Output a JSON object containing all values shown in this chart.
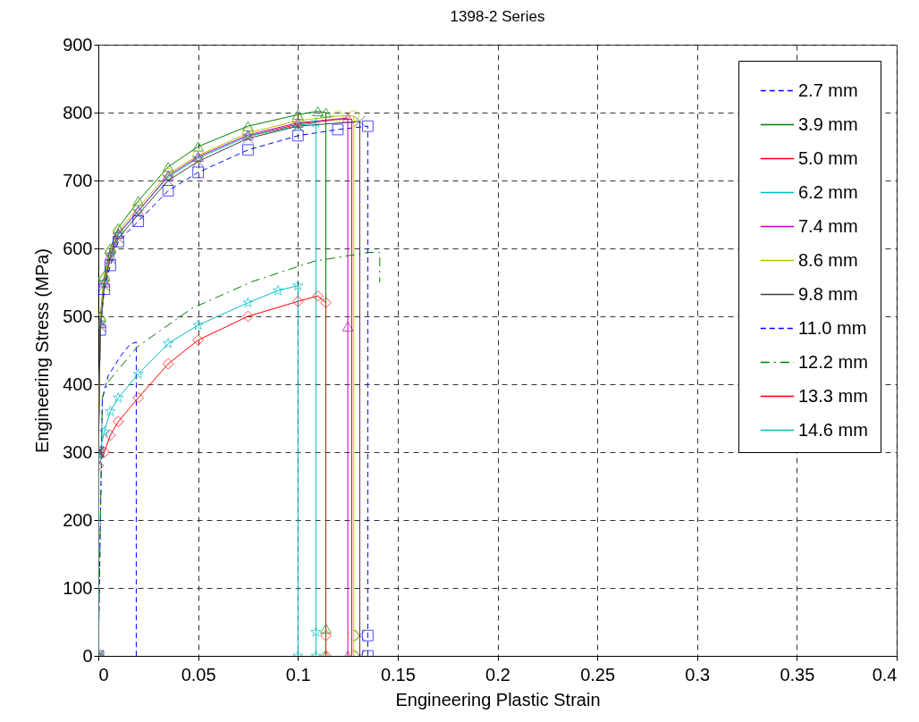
{
  "chart_data": {
    "type": "line",
    "title": "1398-2 Series",
    "xlabel": "Engineering Plastic Strain",
    "ylabel": "Engineering Stress (MPa)",
    "xlim": [
      0,
      0.4
    ],
    "xticks": [
      0,
      0.05,
      0.1,
      0.15,
      0.2,
      0.25,
      0.3,
      0.35,
      0.4
    ],
    "ylim": [
      0,
      900
    ],
    "yticks": [
      0,
      100,
      200,
      300,
      400,
      500,
      600,
      700,
      800,
      900
    ],
    "grid": true,
    "legend": "top right",
    "series": [
      {
        "name": "2.7 mm",
        "color": "#0000ff",
        "marker": "square",
        "line_style": "dashed",
        "x": [
          0,
          0,
          0.001,
          0.003,
          0.006,
          0.01,
          0.02,
          0.035,
          0.05,
          0.075,
          0.1,
          0.12,
          0.135,
          0.135,
          0.135
        ],
        "values": [
          0,
          300,
          480,
          540,
          575,
          610,
          640,
          685,
          712,
          745,
          766,
          775,
          780,
          30,
          0
        ]
      },
      {
        "name": "3.9 mm",
        "color": "#008000",
        "marker": "triangle",
        "line_style": "solid",
        "x": [
          0,
          0,
          0.001,
          0.003,
          0.006,
          0.01,
          0.02,
          0.035,
          0.05,
          0.075,
          0.1,
          0.11,
          0.114,
          0.114,
          0.114
        ],
        "values": [
          0,
          300,
          500,
          560,
          600,
          630,
          670,
          720,
          750,
          780,
          797,
          802,
          800,
          40,
          0
        ]
      },
      {
        "name": "5.0 mm",
        "color": "#ff0000",
        "marker": "none",
        "line_style": "solid",
        "x": [
          0.075,
          0.1,
          0.12,
          0.127,
          0.127
        ],
        "values": [
          765,
          783,
          790,
          790,
          0
        ]
      },
      {
        "name": "6.2 mm",
        "color": "#00bfbf",
        "marker": "star",
        "line_style": "solid",
        "x": [
          0,
          0,
          0.001,
          0.003,
          0.006,
          0.01,
          0.02,
          0.035,
          0.05,
          0.075,
          0.1,
          0.109,
          0.109,
          0.109
        ],
        "values": [
          0,
          300,
          490,
          550,
          590,
          620,
          655,
          705,
          733,
          765,
          781,
          785,
          35,
          0
        ]
      },
      {
        "name": "7.4 mm",
        "color": "#bf00bf",
        "marker": "triangle",
        "line_style": "solid",
        "x": [
          0,
          0,
          0.001,
          0.003,
          0.006,
          0.01,
          0.02,
          0.035,
          0.05,
          0.075,
          0.1,
          0.125,
          0.125,
          0.125
        ],
        "values": [
          0,
          300,
          490,
          550,
          590,
          622,
          655,
          707,
          735,
          767,
          785,
          792,
          485,
          0
        ]
      },
      {
        "name": "8.6 mm",
        "color": "#bfbf00",
        "marker": "circle",
        "line_style": "solid",
        "x": [
          0,
          0,
          0.001,
          0.003,
          0.006,
          0.01,
          0.02,
          0.035,
          0.05,
          0.075,
          0.1,
          0.12,
          0.128,
          0.128,
          0.128
        ],
        "values": [
          0,
          300,
          495,
          555,
          595,
          625,
          660,
          710,
          737,
          770,
          788,
          795,
          795,
          30,
          0
        ]
      },
      {
        "name": "9.8 mm",
        "color": "#404040",
        "marker": "cross",
        "line_style": "solid",
        "x": [
          0,
          0,
          0.001,
          0.003,
          0.006,
          0.01,
          0.02,
          0.035,
          0.05,
          0.075,
          0.1,
          0.131,
          0.131,
          0.131
        ],
        "values": [
          0,
          300,
          485,
          545,
          585,
          615,
          650,
          700,
          728,
          762,
          780,
          787,
          30,
          0
        ]
      },
      {
        "name": "11.0 mm",
        "color": "#0000ff",
        "marker": "none",
        "line_style": "dashed",
        "x": [
          0,
          0.002,
          0.005,
          0.012,
          0.016,
          0.019,
          0.019
        ],
        "values": [
          0,
          380,
          413,
          445,
          459,
          462,
          0
        ]
      },
      {
        "name": "12.2 mm",
        "color": "#008000",
        "marker": "none",
        "line_style": "dashdot",
        "x": [
          0,
          0.002,
          0.005,
          0.0195,
          0.047,
          0.077,
          0.108,
          0.135,
          0.141,
          0.141
        ],
        "values": [
          0,
          380,
          404,
          455,
          512,
          551,
          581,
          594,
          594,
          550
        ]
      },
      {
        "name": "13.3 mm",
        "color": "#ff0000",
        "marker": "diamond",
        "line_style": "solid",
        "x": [
          0,
          0,
          0.003,
          0.006,
          0.01,
          0.02,
          0.035,
          0.05,
          0.075,
          0.1,
          0.11,
          0.114,
          0.114,
          0.114
        ],
        "values": [
          0,
          280,
          300,
          325,
          345,
          380,
          430,
          465,
          500,
          522,
          530,
          520,
          30,
          0
        ]
      },
      {
        "name": "14.6 mm",
        "color": "#00bfbf",
        "marker": "star",
        "line_style": "solid",
        "x": [
          0,
          0,
          0.003,
          0.006,
          0.01,
          0.02,
          0.035,
          0.05,
          0.075,
          0.09,
          0.1,
          0.1
        ],
        "values": [
          0,
          290,
          330,
          360,
          380,
          415,
          460,
          487,
          520,
          538,
          545,
          0
        ]
      }
    ]
  }
}
